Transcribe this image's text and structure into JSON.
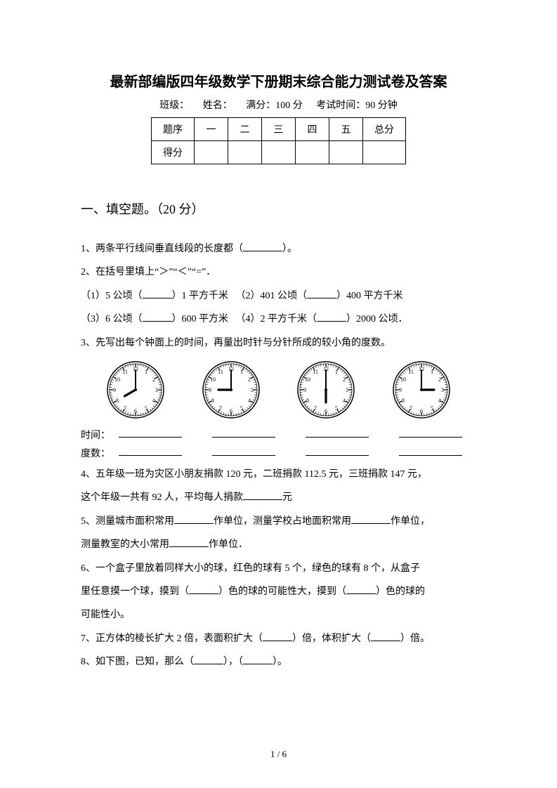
{
  "title": "最新部编版四年级数学下册期末综合能力测试卷及答案",
  "info": {
    "class_label": "班级：",
    "name_label": "姓名：",
    "full_score": "满分：100 分",
    "time": "考试时间：90 分钟"
  },
  "score_table": {
    "row1": [
      "题序",
      "一",
      "二",
      "三",
      "四",
      "五",
      "总分"
    ],
    "row2_label": "得分"
  },
  "section1": {
    "header": "一、填空题。（20 分）",
    "q1": "1、两条平行线间垂直线段的长度都（",
    "q1_end": "）。",
    "q2": "2、在括号里填上“＞”“＜”“=”．",
    "q2_1a": "（1）5 公顷（",
    "q2_1b": "）1 平方千米",
    "q2_2a": "（2）401 公顷（",
    "q2_2b": "）400 平方千米",
    "q2_3a": "（3）6 公顷（",
    "q2_3b": "）600 平方米",
    "q2_4a": "（4）2 平方千米（",
    "q2_4b": "）2000 公顷．",
    "q3": "3、先写出每个钟面上的时间，再量出时针与分针所成的较小角的度数。",
    "time_label": "时间：",
    "deg_label": "度数：",
    "q4": "4、五年级一班为灾区小朋友捐款 120 元，二班捐款 112.5 元，三班捐款 147 元，",
    "q4b": "这个年级一共有 92 人，平均每人捐款",
    "q4c": "元",
    "q5a": "5、测量城市面积常用",
    "q5b": "作单位，测量学校占地面积常用",
    "q5c": "作单位，",
    "q5d": "测量教室的大小常用",
    "q5e": "作单位．",
    "q6a": "6、一个盒子里放着同样大小的球，红色的球有 5 个，绿色的球有 8 个，从盒子",
    "q6b": "里任意摸一个球，摸到（",
    "q6c": "）色的球的可能性大，摸到（",
    "q6d": "）色的球的",
    "q6e": "可能性小。",
    "q7a": "7、正方体的棱长扩大 2 倍，表面积扩大（",
    "q7b": "）倍，体积扩大（",
    "q7c": "）倍。",
    "q8a": "8、如下图，已知，那么（",
    "q8b": "），（",
    "q8c": "）。"
  },
  "clocks": [
    {
      "hour_angle": 240,
      "minute_angle": 0
    },
    {
      "hour_angle": 270,
      "minute_angle": 0
    },
    {
      "hour_angle": 180,
      "minute_angle": 0
    },
    {
      "hour_angle": 90,
      "minute_angle": 0
    }
  ],
  "clock_style": {
    "stroke": "#000000",
    "face_fill": "#ffffff",
    "tick_major_len": 5,
    "tick_minor_len": 3,
    "hand_hour_len": 18,
    "hand_hour_w": 3.2,
    "hand_min_len": 28,
    "hand_min_w": 2,
    "num_font": 8
  },
  "page_num": "1 / 6"
}
